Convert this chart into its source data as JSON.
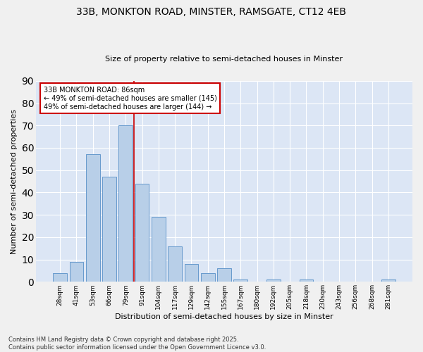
{
  "title_line1": "33B, MONKTON ROAD, MINSTER, RAMSGATE, CT12 4EB",
  "title_line2": "Size of property relative to semi-detached houses in Minster",
  "xlabel": "Distribution of semi-detached houses by size in Minster",
  "ylabel": "Number of semi-detached properties",
  "categories": [
    "28sqm",
    "41sqm",
    "53sqm",
    "66sqm",
    "79sqm",
    "91sqm",
    "104sqm",
    "117sqm",
    "129sqm",
    "142sqm",
    "155sqm",
    "167sqm",
    "180sqm",
    "192sqm",
    "205sqm",
    "218sqm",
    "230sqm",
    "243sqm",
    "256sqm",
    "268sqm",
    "281sqm"
  ],
  "values": [
    4,
    9,
    57,
    47,
    70,
    44,
    29,
    16,
    8,
    4,
    6,
    1,
    0,
    1,
    0,
    1,
    0,
    0,
    0,
    0,
    1
  ],
  "bar_color": "#b8cfe8",
  "bar_edge_color": "#6699cc",
  "bg_color": "#dce6f5",
  "grid_color": "#ffffff",
  "vline_color": "#cc0000",
  "annotation_text": "33B MONKTON ROAD: 86sqm\n← 49% of semi-detached houses are smaller (145)\n49% of semi-detached houses are larger (144) →",
  "annotation_box_color": "#ffffff",
  "annotation_box_edge": "#cc0000",
  "footnote": "Contains HM Land Registry data © Crown copyright and database right 2025.\nContains public sector information licensed under the Open Government Licence v3.0.",
  "ylim": [
    0,
    90
  ],
  "yticks": [
    0,
    10,
    20,
    30,
    40,
    50,
    60,
    70,
    80,
    90
  ],
  "fig_bg": "#f0f0f0"
}
